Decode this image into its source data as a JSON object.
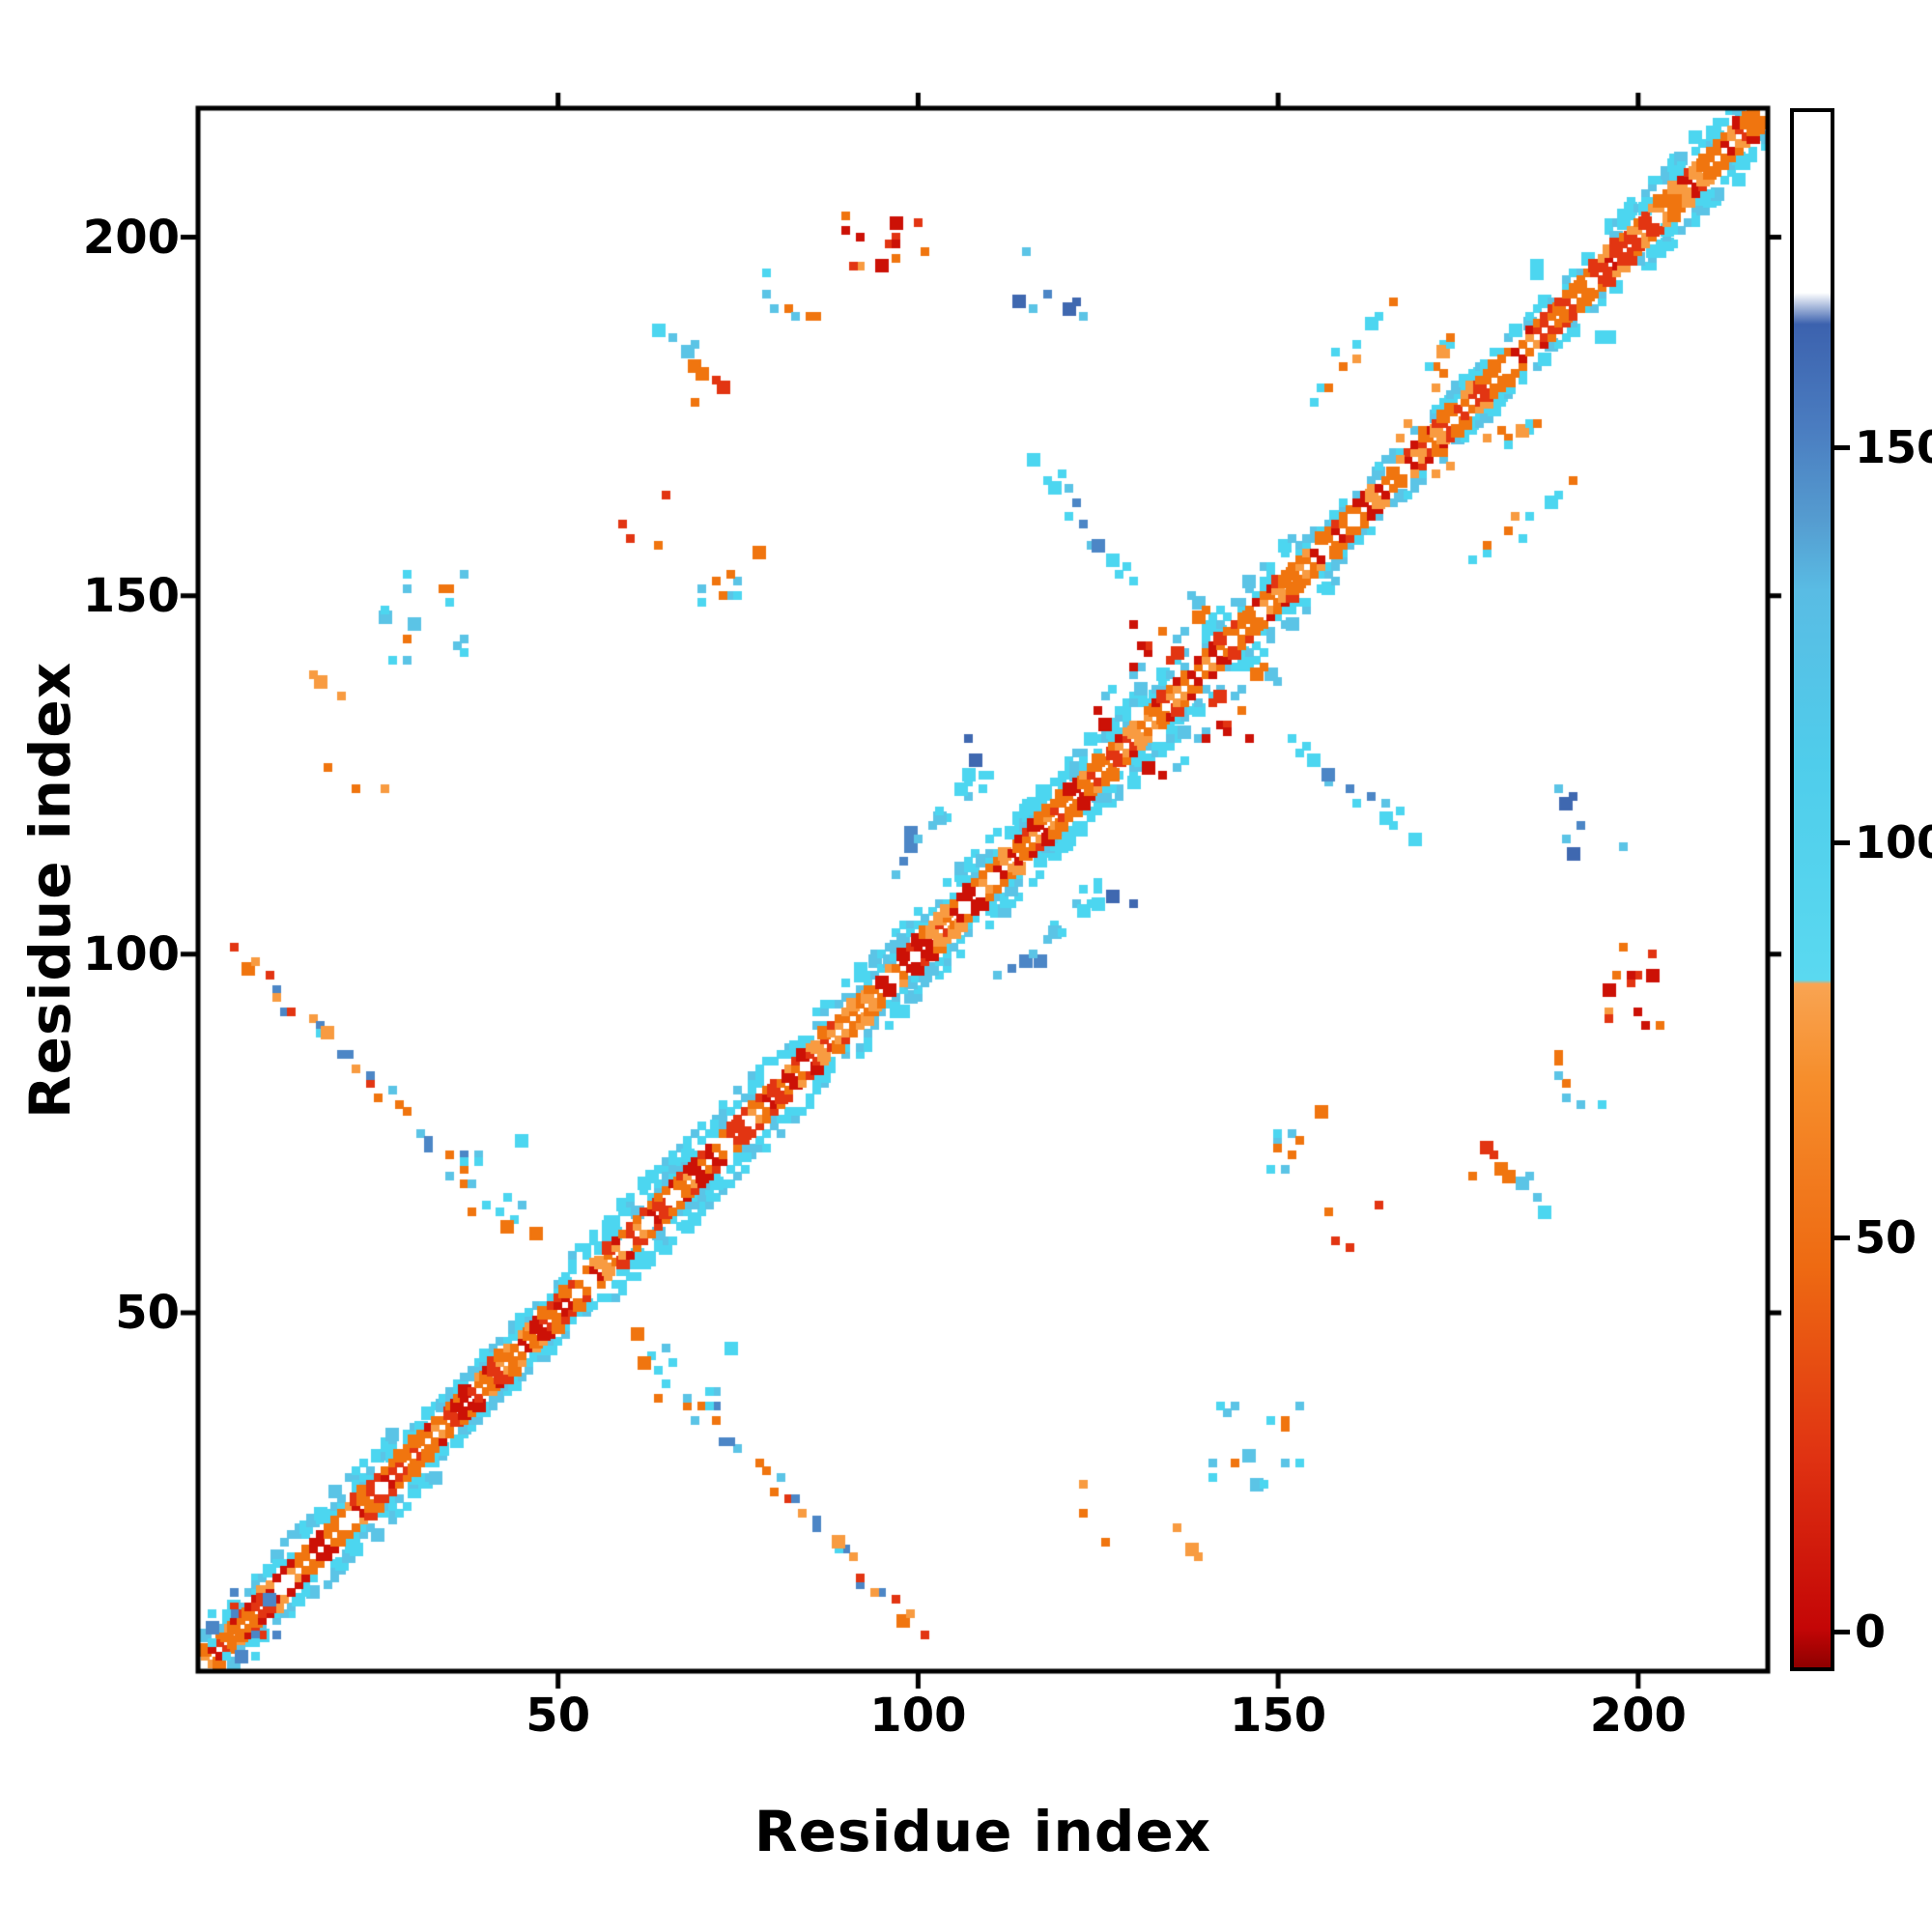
{
  "chart_data": {
    "type": "heatmap",
    "subtype": "protein-contact-map",
    "title": "",
    "xlabel": "Residue index",
    "ylabel": "Residue index",
    "x_range": [
      0,
      218
    ],
    "y_range": [
      0,
      218
    ],
    "x_ticks": [
      50,
      100,
      150,
      200
    ],
    "y_ticks": [
      50,
      100,
      150,
      200
    ],
    "grid": false,
    "symmetric": true,
    "background": "#ffffff",
    "legend_position": "right-colorbar",
    "colorbar": {
      "ticks": [
        0,
        50,
        100,
        150
      ],
      "value_range": [
        -5,
        193
      ],
      "stops": [
        {
          "v": -5,
          "color": "#8f0000"
        },
        {
          "v": 0,
          "color": "#c40606"
        },
        {
          "v": 22,
          "color": "#e03312"
        },
        {
          "v": 46,
          "color": "#ee6a12"
        },
        {
          "v": 70,
          "color": "#f68e2c"
        },
        {
          "v": 82,
          "color": "#f9a452"
        },
        {
          "v": 82.5,
          "color": "#5ad9f0"
        },
        {
          "v": 110,
          "color": "#4fcdeb"
        },
        {
          "v": 132,
          "color": "#59bce4"
        },
        {
          "v": 141,
          "color": "#559cd0"
        },
        {
          "v": 153,
          "color": "#4a7cc0"
        },
        {
          "v": 166,
          "color": "#3c62ae"
        },
        {
          "v": 170,
          "color": "#ffffff"
        },
        {
          "v": 193,
          "color": "#ffffff"
        }
      ]
    },
    "palette": {
      "red": "#cc1106",
      "red2": "#e23512",
      "orange": "#f0750f",
      "orange2": "#f89b41",
      "cyan": "#4cd6f0",
      "cyan2": "#5bc4e6",
      "blue": "#4c86c6",
      "blue2": "#3f68b0"
    },
    "diagonal_band": {
      "start": 1,
      "end": 216,
      "core": {
        "offsets": [
          1,
          2
        ],
        "skip": 0.13,
        "colors": [
          "orange",
          "orange",
          "red2",
          "orange2",
          "red"
        ]
      },
      "flank": {
        "offsets": [
          3,
          4
        ],
        "skip": 0.42,
        "colors": [
          "cyan",
          "cyan",
          "cyan2"
        ]
      },
      "wide_regions": [
        [
          8,
          28
        ],
        [
          52,
          100
        ],
        [
          104,
          152
        ],
        [
          196,
          215
        ]
      ],
      "wide_offsets": [
        5,
        6
      ],
      "wide_skip": 0.5
    },
    "clusters": [
      {
        "name": "nterm-blob",
        "pattern": "blob",
        "x1": 1,
        "y1": 2,
        "x2": 10,
        "y2": 12,
        "points": 12,
        "colors": [
          "blue",
          "cyan",
          "red2",
          "cyan2"
        ]
      },
      {
        "name": "hairpin-a",
        "pattern": "segment",
        "x1": 5,
        "y1": 101,
        "x2": 24,
        "y2": 83,
        "points": 16,
        "jitter": 1.3,
        "colors": [
          "orange",
          "cyan",
          "blue",
          "orange2",
          "red2"
        ]
      },
      {
        "name": "hairpin-b",
        "pattern": "segment",
        "x1": 24,
        "y1": 83,
        "x2": 46,
        "y2": 60,
        "points": 18,
        "jitter": 1.5,
        "colors": [
          "cyan",
          "orange",
          "cyan2",
          "blue",
          "orange"
        ]
      },
      {
        "name": "hairpin-dense-end",
        "pattern": "blob",
        "x1": 33,
        "y1": 62,
        "x2": 45,
        "y2": 74,
        "points": 10,
        "colors": [
          "cyan",
          "orange",
          "cyan2"
        ]
      },
      {
        "name": "left-blob",
        "pattern": "blob",
        "x1": 25,
        "y1": 141,
        "x2": 38,
        "y2": 154,
        "points": 15,
        "colors": [
          "cyan",
          "cyan2",
          "orange",
          "cyan"
        ]
      },
      {
        "name": "left-sparse",
        "pattern": "blob",
        "x1": 16,
        "y1": 122,
        "x2": 26,
        "y2": 140,
        "points": 6,
        "colors": [
          "orange",
          "orange2"
        ]
      },
      {
        "name": "mid-orange-pair",
        "pattern": "blob",
        "x1": 67,
        "y1": 176,
        "x2": 73,
        "y2": 182,
        "points": 5,
        "colors": [
          "orange",
          "red2"
        ]
      },
      {
        "name": "mid-cluster",
        "pattern": "blob",
        "x1": 69,
        "y1": 146,
        "x2": 79,
        "y2": 158,
        "points": 11,
        "colors": [
          "cyan",
          "orange",
          "cyan2"
        ]
      },
      {
        "name": "upper-cyan-1",
        "pattern": "blob",
        "x1": 62,
        "y1": 184,
        "x2": 70,
        "y2": 191,
        "points": 5,
        "colors": [
          "cyan",
          "cyan2"
        ]
      },
      {
        "name": "upper-cyan-2",
        "pattern": "blob",
        "x1": 78,
        "y1": 185,
        "x2": 87,
        "y2": 197,
        "points": 7,
        "colors": [
          "cyan",
          "orange",
          "cyan2"
        ]
      },
      {
        "name": "top-blob",
        "pattern": "blob",
        "x1": 89,
        "y1": 195,
        "x2": 101,
        "y2": 204,
        "points": 14,
        "colors": [
          "orange",
          "red",
          "orange2",
          "red2"
        ]
      },
      {
        "name": "steel-top",
        "pattern": "blob",
        "x1": 112,
        "y1": 188,
        "x2": 123,
        "y2": 198,
        "points": 8,
        "colors": [
          "blue",
          "cyan2",
          "blue2"
        ]
      },
      {
        "name": "anti-mid",
        "pattern": "segment",
        "x1": 117,
        "y1": 169,
        "x2": 129,
        "y2": 151,
        "points": 14,
        "jitter": 1.4,
        "colors": [
          "cyan",
          "blue",
          "cyan2",
          "cyan"
        ]
      },
      {
        "name": "near-diag-par",
        "pattern": "segment",
        "x1": 124,
        "y1": 132,
        "x2": 141,
        "y2": 150,
        "points": 16,
        "jitter": 1.8,
        "colors": [
          "red",
          "cyan",
          "orange",
          "cyan2"
        ]
      },
      {
        "name": "red-knot",
        "pattern": "blob",
        "x1": 130,
        "y1": 139,
        "x2": 136,
        "y2": 147,
        "points": 7,
        "colors": [
          "red",
          "red2",
          "orange"
        ]
      },
      {
        "name": "offdiag-cyan",
        "pattern": "segment",
        "x1": 96,
        "y1": 112,
        "x2": 108,
        "y2": 125,
        "points": 13,
        "jitter": 1.5,
        "colors": [
          "cyan",
          "cyan2",
          "blue"
        ]
      },
      {
        "name": "offdiag-cyan-2",
        "pattern": "blob",
        "x1": 106,
        "y1": 122,
        "x2": 114,
        "y2": 131,
        "points": 6,
        "colors": [
          "cyan",
          "blue2"
        ]
      },
      {
        "name": "right-orange-streak",
        "pattern": "segment",
        "x1": 154,
        "y1": 176,
        "x2": 166,
        "y2": 191,
        "points": 10,
        "jitter": 1.3,
        "colors": [
          "orange",
          "orange2",
          "cyan"
        ]
      },
      {
        "name": "right-mix",
        "pattern": "blob",
        "x1": 171,
        "y1": 178,
        "x2": 179,
        "y2": 186,
        "points": 9,
        "colors": [
          "orange",
          "cyan",
          "orange2"
        ]
      },
      {
        "name": "right-orange-2",
        "pattern": "blob",
        "x1": 166,
        "y1": 169,
        "x2": 173,
        "y2": 176,
        "points": 6,
        "colors": [
          "orange",
          "orange2"
        ]
      },
      {
        "name": "lone-cyan-dot",
        "pattern": "blob",
        "x1": 185,
        "y1": 194,
        "x2": 188,
        "y2": 196,
        "points": 2,
        "colors": [
          "cyan"
        ]
      },
      {
        "name": "mid-left-orange",
        "pattern": "blob",
        "x1": 59,
        "y1": 157,
        "x2": 66,
        "y2": 164,
        "points": 4,
        "colors": [
          "orange",
          "red2"
        ]
      }
    ]
  }
}
